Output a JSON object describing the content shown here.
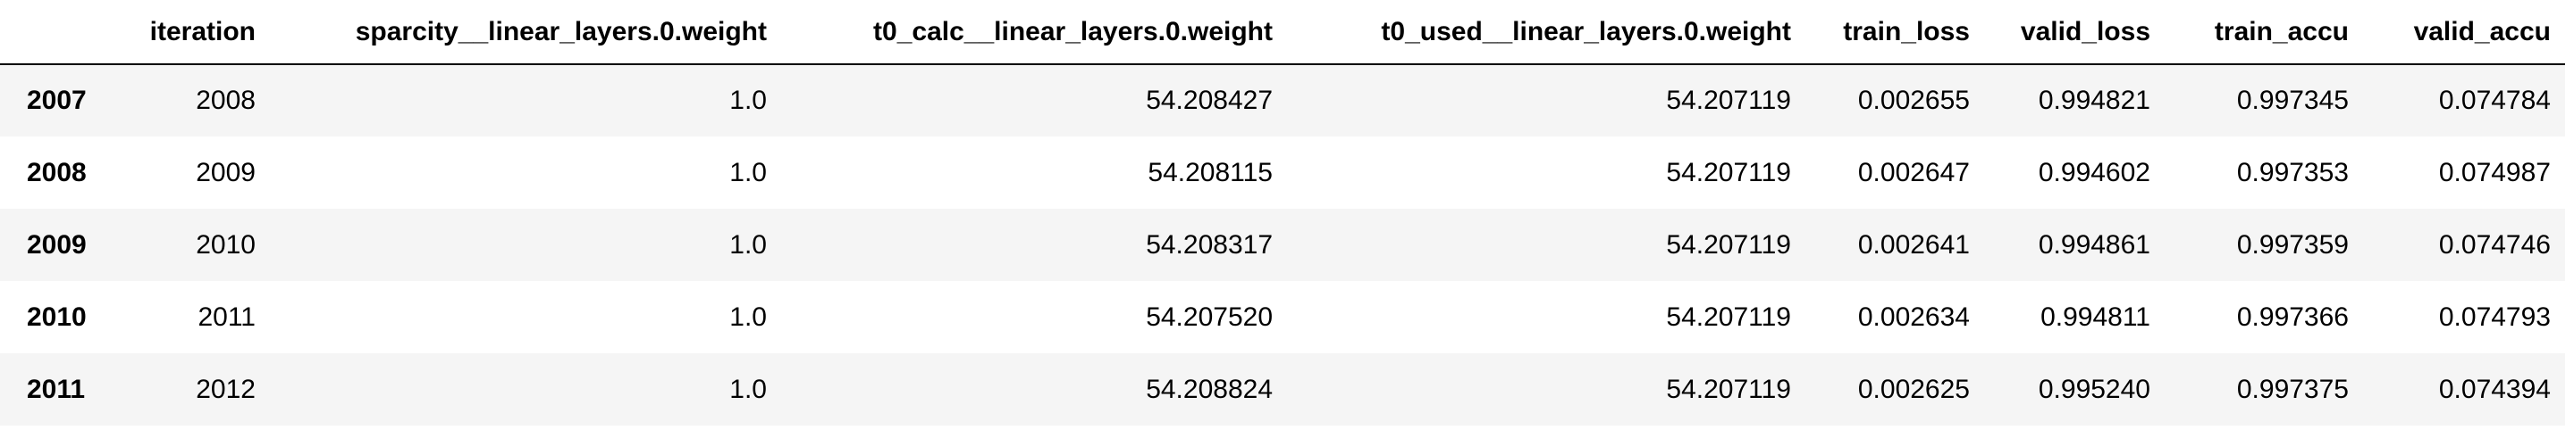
{
  "table": {
    "index_header": "",
    "columns": [
      "iteration",
      "sparcity__linear_layers.0.weight",
      "t0_calc__linear_layers.0.weight",
      "t0_used__linear_layers.0.weight",
      "train_loss",
      "valid_loss",
      "train_accu",
      "valid_accu"
    ],
    "rows": [
      {
        "index": "2007",
        "cells": [
          "2008",
          "1.0",
          "54.208427",
          "54.207119",
          "0.002655",
          "0.994821",
          "0.997345",
          "0.074784"
        ]
      },
      {
        "index": "2008",
        "cells": [
          "2009",
          "1.0",
          "54.208115",
          "54.207119",
          "0.002647",
          "0.994602",
          "0.997353",
          "0.074987"
        ]
      },
      {
        "index": "2009",
        "cells": [
          "2010",
          "1.0",
          "54.208317",
          "54.207119",
          "0.002641",
          "0.994861",
          "0.997359",
          "0.074746"
        ]
      },
      {
        "index": "2010",
        "cells": [
          "2011",
          "1.0",
          "54.207520",
          "54.207119",
          "0.002634",
          "0.994811",
          "0.997366",
          "0.074793"
        ]
      },
      {
        "index": "2011",
        "cells": [
          "2012",
          "1.0",
          "54.208824",
          "54.207119",
          "0.002625",
          "0.995240",
          "0.997375",
          "0.074394"
        ]
      }
    ]
  }
}
